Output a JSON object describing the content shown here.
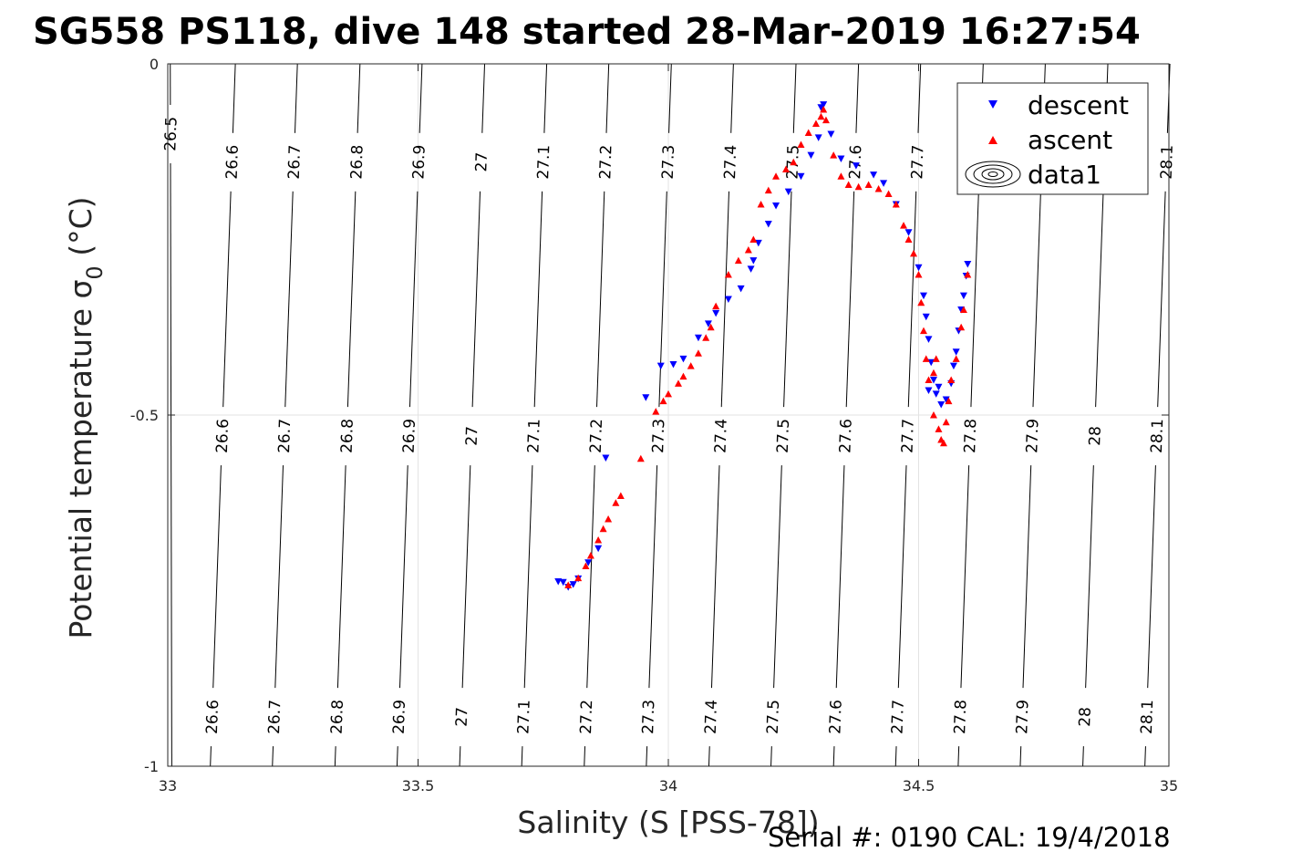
{
  "chart_data": {
    "type": "scatter",
    "title": "SG558 PS118, dive 148 started 28-Mar-2019 16:27:54",
    "xlabel": "Salinity (S [PSS-78])",
    "ylabel_main": "Potential temperature ",
    "ylabel_sigma": "σ",
    "ylabel_sub": "0",
    "ylabel_unit": " (°C)",
    "xlim": [
      33,
      35
    ],
    "ylim": [
      -1,
      0
    ],
    "xticks": [
      33,
      33.5,
      34,
      34.5,
      35
    ],
    "xtick_labels": [
      "33",
      "33.5",
      "34",
      "34.5",
      "35"
    ],
    "yticks": [
      0,
      -0.5,
      -1
    ],
    "ytick_labels": [
      "0",
      "-0.5",
      "-1"
    ],
    "grid": true,
    "legend_position": "top-right",
    "legend": [
      "descent",
      "ascent",
      "data1"
    ],
    "footer": "Serial #: 0190  CAL: 19/4/2018",
    "contours": [
      {
        "label": "26.5",
        "x0": 33.005,
        "x1": 33.008,
        "labels_y": [
          -0.1
        ]
      },
      {
        "label": "26.6",
        "x0": 33.135,
        "x1": 33.085,
        "labels_y": [
          -0.14,
          -0.53,
          -0.93
        ]
      },
      {
        "label": "26.7",
        "x0": 33.259,
        "x1": 33.209,
        "labels_y": [
          -0.14,
          -0.53,
          -0.93
        ]
      },
      {
        "label": "26.8",
        "x0": 33.384,
        "x1": 33.334,
        "labels_y": [
          -0.14,
          -0.53,
          -0.93
        ]
      },
      {
        "label": "26.9",
        "x0": 33.508,
        "x1": 33.458,
        "labels_y": [
          -0.14,
          -0.53,
          -0.93
        ]
      },
      {
        "label": "27",
        "x0": 33.633,
        "x1": 33.583,
        "labels_y": [
          -0.14,
          -0.53,
          -0.93
        ]
      },
      {
        "label": "27.1",
        "x0": 33.757,
        "x1": 33.707,
        "labels_y": [
          -0.14,
          -0.53,
          -0.93
        ]
      },
      {
        "label": "27.2",
        "x0": 33.881,
        "x1": 33.832,
        "labels_y": [
          -0.14,
          -0.53,
          -0.93
        ]
      },
      {
        "label": "27.3",
        "x0": 34.006,
        "x1": 33.956,
        "labels_y": [
          -0.14,
          -0.53,
          -0.93
        ]
      },
      {
        "label": "27.4",
        "x0": 34.13,
        "x1": 34.081,
        "labels_y": [
          -0.14,
          -0.53,
          -0.93
        ]
      },
      {
        "label": "27.5",
        "x0": 34.255,
        "x1": 34.205,
        "labels_y": [
          -0.14,
          -0.53,
          -0.93
        ]
      },
      {
        "label": "27.6",
        "x0": 34.38,
        "x1": 34.33,
        "labels_y": [
          -0.14,
          -0.53,
          -0.93
        ]
      },
      {
        "label": "27.7",
        "x0": 34.504,
        "x1": 34.454,
        "labels_y": [
          -0.14,
          -0.53,
          -0.93
        ]
      },
      {
        "label": "27.8",
        "x0": 34.629,
        "x1": 34.579,
        "labels_y": [
          -0.53,
          -0.93
        ]
      },
      {
        "label": "27.9",
        "x0": 34.753,
        "x1": 34.703,
        "labels_y": [
          -0.53,
          -0.93
        ]
      },
      {
        "label": "28",
        "x0": 34.878,
        "x1": 34.828,
        "labels_y": [
          -0.53,
          -0.93
        ]
      },
      {
        "label": "28.1",
        "x0": 35.002,
        "x1": 34.952,
        "labels_y": [
          -0.14,
          -0.53,
          -0.93
        ]
      }
    ],
    "series": [
      {
        "name": "descent",
        "color": "#0000ff",
        "marker": "triangle-down",
        "points": [
          [
            33.78,
            -0.737
          ],
          [
            33.8,
            -0.745
          ],
          [
            33.81,
            -0.741
          ],
          [
            33.79,
            -0.738
          ],
          [
            33.82,
            -0.733
          ],
          [
            33.84,
            -0.71
          ],
          [
            33.86,
            -0.69
          ],
          [
            33.875,
            -0.561
          ],
          [
            33.955,
            -0.475
          ],
          [
            33.985,
            -0.43
          ],
          [
            34.01,
            -0.428
          ],
          [
            34.03,
            -0.42
          ],
          [
            34.06,
            -0.39
          ],
          [
            34.08,
            -0.37
          ],
          [
            34.095,
            -0.355
          ],
          [
            34.12,
            -0.335
          ],
          [
            34.145,
            -0.32
          ],
          [
            34.165,
            -0.292
          ],
          [
            34.17,
            -0.28
          ],
          [
            34.18,
            -0.255
          ],
          [
            34.2,
            -0.228
          ],
          [
            34.215,
            -0.202
          ],
          [
            34.24,
            -0.182
          ],
          [
            34.265,
            -0.16
          ],
          [
            34.285,
            -0.13
          ],
          [
            34.3,
            -0.105
          ],
          [
            34.305,
            -0.062
          ],
          [
            34.31,
            -0.058
          ],
          [
            34.325,
            -0.1
          ],
          [
            34.345,
            -0.135
          ],
          [
            34.375,
            -0.145
          ],
          [
            34.41,
            -0.158
          ],
          [
            34.43,
            -0.17
          ],
          [
            34.455,
            -0.2
          ],
          [
            34.48,
            -0.24
          ],
          [
            34.5,
            -0.29
          ],
          [
            34.51,
            -0.33
          ],
          [
            34.515,
            -0.36
          ],
          [
            34.52,
            -0.392
          ],
          [
            34.525,
            -0.425
          ],
          [
            34.53,
            -0.45
          ],
          [
            34.535,
            -0.47
          ],
          [
            34.545,
            -0.485
          ],
          [
            34.555,
            -0.478
          ],
          [
            34.565,
            -0.455
          ],
          [
            34.57,
            -0.43
          ],
          [
            34.575,
            -0.41
          ],
          [
            34.58,
            -0.38
          ],
          [
            34.585,
            -0.35
          ],
          [
            34.59,
            -0.33
          ],
          [
            34.595,
            -0.302
          ],
          [
            34.598,
            -0.285
          ],
          [
            34.52,
            -0.465
          ],
          [
            34.54,
            -0.46
          ]
        ]
      },
      {
        "name": "ascent",
        "color": "#ff0000",
        "marker": "triangle-up",
        "points": [
          [
            33.8,
            -0.742
          ],
          [
            33.82,
            -0.732
          ],
          [
            33.835,
            -0.715
          ],
          [
            33.845,
            -0.7
          ],
          [
            33.86,
            -0.678
          ],
          [
            33.87,
            -0.662
          ],
          [
            33.88,
            -0.648
          ],
          [
            33.895,
            -0.625
          ],
          [
            33.905,
            -0.615
          ],
          [
            33.945,
            -0.562
          ],
          [
            33.975,
            -0.495
          ],
          [
            33.99,
            -0.48
          ],
          [
            34.0,
            -0.47
          ],
          [
            34.02,
            -0.455
          ],
          [
            34.03,
            -0.445
          ],
          [
            34.045,
            -0.43
          ],
          [
            34.06,
            -0.412
          ],
          [
            34.075,
            -0.39
          ],
          [
            34.085,
            -0.375
          ],
          [
            34.095,
            -0.345
          ],
          [
            34.12,
            -0.3
          ],
          [
            34.14,
            -0.28
          ],
          [
            34.16,
            -0.265
          ],
          [
            34.17,
            -0.25
          ],
          [
            34.185,
            -0.2
          ],
          [
            34.2,
            -0.18
          ],
          [
            34.215,
            -0.16
          ],
          [
            34.235,
            -0.15
          ],
          [
            34.25,
            -0.14
          ],
          [
            34.265,
            -0.115
          ],
          [
            34.28,
            -0.098
          ],
          [
            34.295,
            -0.085
          ],
          [
            34.305,
            -0.075
          ],
          [
            34.31,
            -0.065
          ],
          [
            34.315,
            -0.08
          ],
          [
            34.33,
            -0.13
          ],
          [
            34.345,
            -0.16
          ],
          [
            34.36,
            -0.172
          ],
          [
            34.38,
            -0.175
          ],
          [
            34.4,
            -0.172
          ],
          [
            34.42,
            -0.178
          ],
          [
            34.44,
            -0.185
          ],
          [
            34.455,
            -0.2
          ],
          [
            34.47,
            -0.23
          ],
          [
            34.48,
            -0.25
          ],
          [
            34.49,
            -0.27
          ],
          [
            34.5,
            -0.3
          ],
          [
            34.505,
            -0.34
          ],
          [
            34.51,
            -0.38
          ],
          [
            34.515,
            -0.42
          ],
          [
            34.52,
            -0.45
          ],
          [
            34.53,
            -0.5
          ],
          [
            34.54,
            -0.52
          ],
          [
            34.545,
            -0.535
          ],
          [
            34.55,
            -0.54
          ],
          [
            34.555,
            -0.51
          ],
          [
            34.56,
            -0.48
          ],
          [
            34.565,
            -0.45
          ],
          [
            34.575,
            -0.42
          ],
          [
            34.585,
            -0.375
          ],
          [
            34.59,
            -0.35
          ],
          [
            34.598,
            -0.3
          ],
          [
            34.53,
            -0.44
          ],
          [
            34.535,
            -0.42
          ]
        ]
      }
    ]
  }
}
